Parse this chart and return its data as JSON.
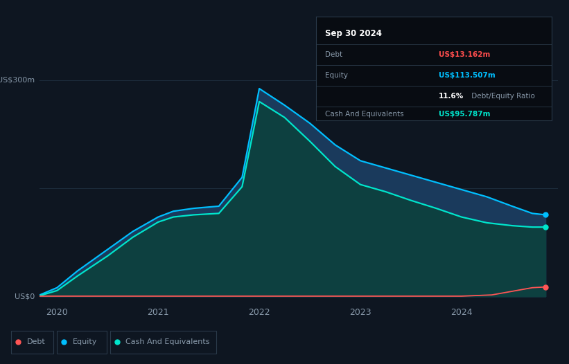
{
  "bg_color": "#0e1621",
  "plot_bg_color": "#0e1621",
  "title_box": {
    "date": "Sep 30 2024",
    "debt_label": "Debt",
    "debt_value": "US$13.162m",
    "equity_label": "Equity",
    "equity_value": "US$113.507m",
    "ratio_value": "11.6%",
    "ratio_label": " Debt/Equity Ratio",
    "cash_label": "Cash And Equivalents",
    "cash_value": "US$95.787m",
    "debt_color": "#ff4d4d",
    "equity_color": "#00bfff",
    "cash_color": "#00e5cc"
  },
  "ylabel_top": "US$300m",
  "ylabel_bot": "US$0",
  "xticks": [
    2020,
    2021,
    2022,
    2023,
    2024
  ],
  "y_max": 300,
  "equity_x": [
    2019.83,
    2020.0,
    2020.2,
    2020.5,
    2020.75,
    2021.0,
    2021.15,
    2021.35,
    2021.6,
    2021.83,
    2022.0,
    2022.25,
    2022.5,
    2022.75,
    2023.0,
    2023.25,
    2023.5,
    2023.75,
    2024.0,
    2024.25,
    2024.5,
    2024.7,
    2024.83
  ],
  "equity_y": [
    2,
    12,
    35,
    65,
    90,
    110,
    118,
    122,
    125,
    165,
    288,
    265,
    240,
    210,
    188,
    178,
    168,
    158,
    148,
    138,
    125,
    115,
    113
  ],
  "cash_x": [
    2019.83,
    2020.0,
    2020.2,
    2020.5,
    2020.75,
    2021.0,
    2021.15,
    2021.35,
    2021.6,
    2021.83,
    2022.0,
    2022.25,
    2022.5,
    2022.75,
    2023.0,
    2023.25,
    2023.5,
    2023.75,
    2024.0,
    2024.25,
    2024.5,
    2024.7,
    2024.83
  ],
  "cash_y": [
    1,
    8,
    28,
    56,
    82,
    103,
    110,
    113,
    115,
    152,
    270,
    248,
    215,
    180,
    155,
    145,
    133,
    122,
    110,
    102,
    98,
    96,
    96
  ],
  "debt_x": [
    2019.83,
    2020.0,
    2020.5,
    2021.0,
    2021.5,
    2022.0,
    2022.5,
    2023.0,
    2023.5,
    2024.0,
    2024.3,
    2024.5,
    2024.7,
    2024.83
  ],
  "debt_y": [
    0.3,
    0.3,
    0.3,
    0.3,
    0.3,
    0.3,
    0.3,
    0.3,
    0.3,
    0.3,
    2,
    7,
    12,
    13
  ],
  "equity_line_color": "#00bfff",
  "equity_fill_color": "#1a3a5c",
  "cash_line_color": "#00e5cc",
  "cash_fill_color": "#0d4040",
  "debt_line_color": "#ff5555",
  "grid_color": "#1e2d3d",
  "text_color": "#8899aa",
  "legend_border": "#2a3a4a",
  "info_box_bg": "#080c12",
  "info_box_border": "#2a3a4a",
  "info_text_color": "#8899aa",
  "info_title_color": "#ffffff"
}
